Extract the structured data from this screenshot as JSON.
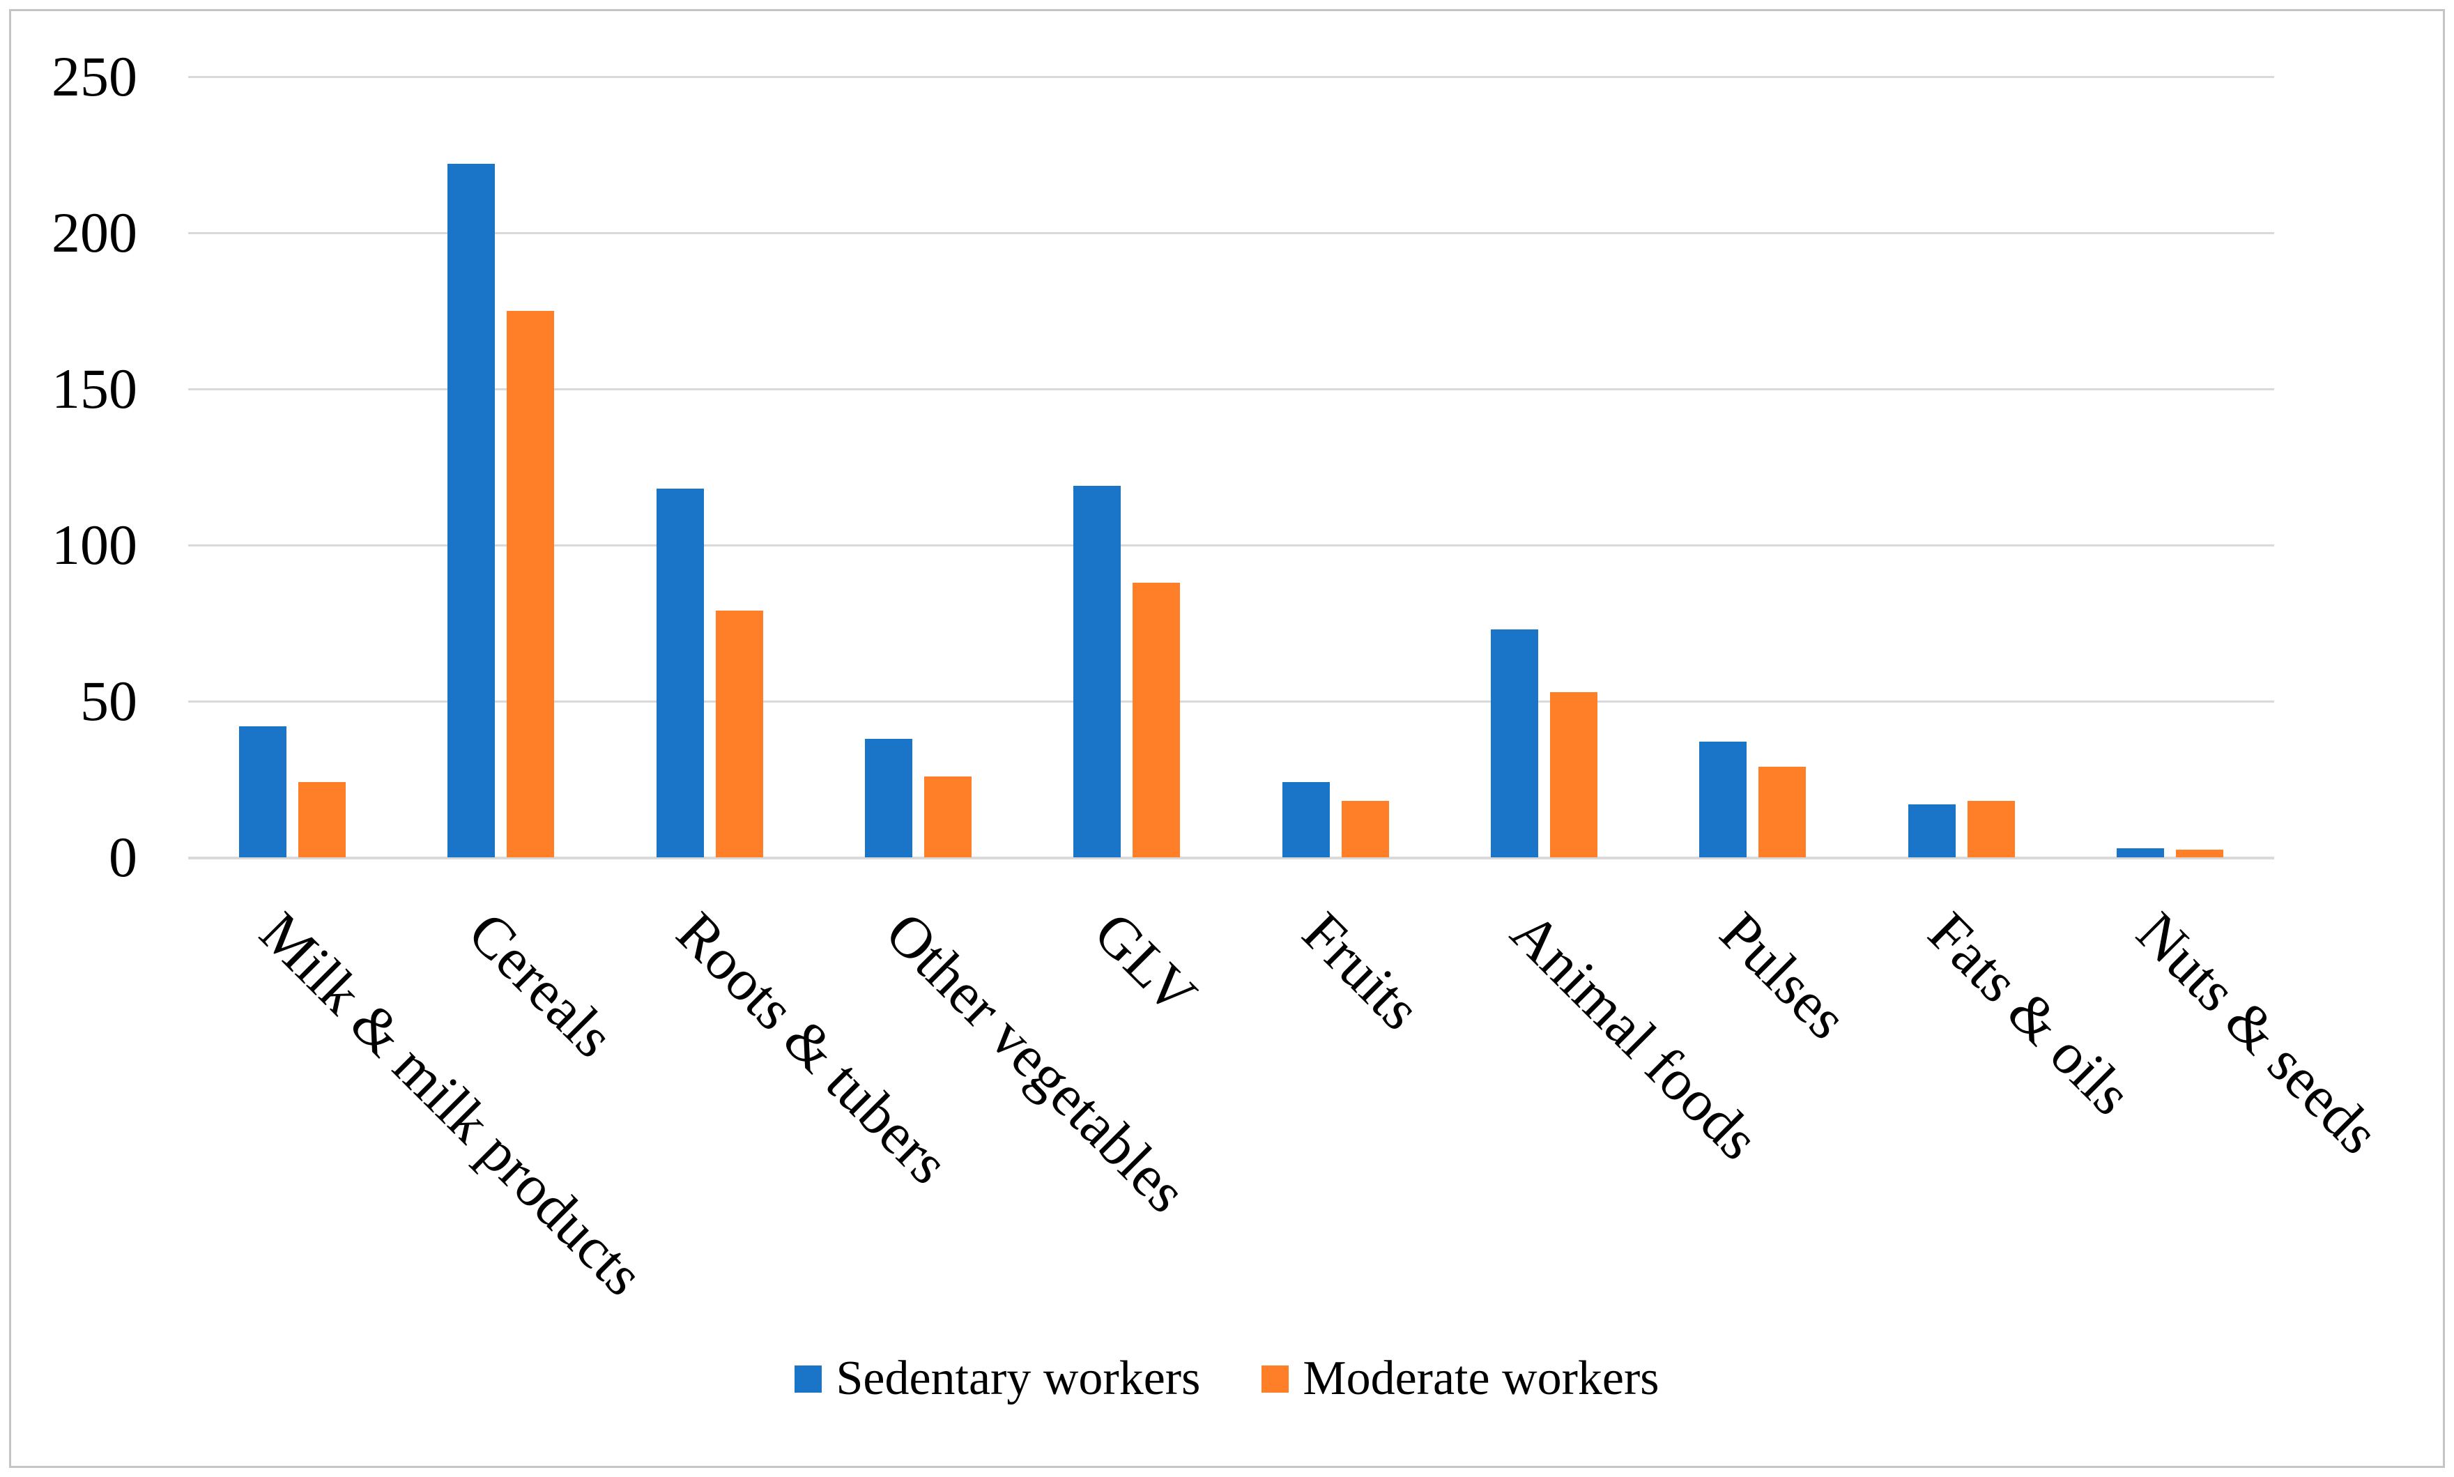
{
  "chart_data": {
    "type": "bar",
    "title": "",
    "xlabel": "",
    "ylabel": "",
    "categories": [
      "Milk & milk products",
      "Cereals",
      "Roots & tubers",
      "Other vegetables",
      "GLV",
      "Fruits",
      "Animal foods",
      "Pulses",
      "Fats & oils",
      "Nuts & seeds"
    ],
    "series": [
      {
        "name": "Sedentary workers",
        "color": "#1a74c8",
        "values": [
          42,
          222,
          118,
          38,
          119,
          24,
          73,
          37,
          17,
          3
        ]
      },
      {
        "name": "Moderate workers",
        "color": "#ff7e28",
        "values": [
          24,
          175,
          79,
          26,
          88,
          18,
          53,
          29,
          18,
          2.5
        ]
      }
    ],
    "ylim": [
      0,
      250
    ],
    "yticks": [
      0,
      50,
      100,
      150,
      200,
      250
    ],
    "grid": "horizontal-only",
    "gridline_color": "#d9d9d9",
    "legend_position": "bottom",
    "plot_background": "#ffffff",
    "border_color": "#c5c5c5"
  }
}
